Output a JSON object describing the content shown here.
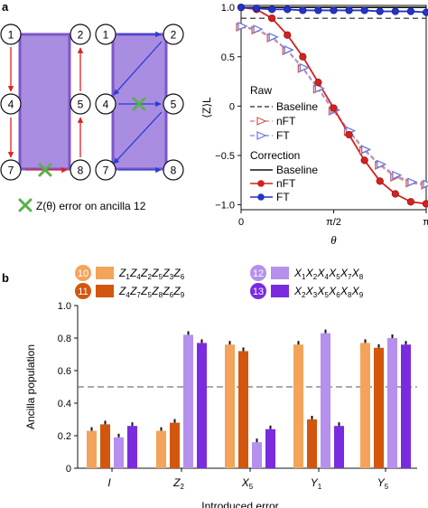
{
  "panel_labels": {
    "a": "a",
    "b": "b"
  },
  "colors": {
    "purple_fill": "#a98de0",
    "purple_edge": "#7d55cc",
    "arrow_red": "#e02020",
    "arrow_blue": "#2a3cd6",
    "red": "#d62020",
    "blue": "#2433c8",
    "orange_light": "#f4a35a",
    "orange_dark": "#d2560e",
    "violet_light": "#b590ec",
    "violet_dark": "#7a2be0",
    "green": "#5ab04a"
  },
  "lattice": {
    "left_nodes": [
      "1",
      "2",
      "4",
      "5",
      "7",
      "8"
    ],
    "right_nodes": [
      "1",
      "2",
      "4",
      "5",
      "7",
      "8"
    ],
    "cross_icon": "green-x-icon",
    "legend_text": "Z(θ) error on ancilla 12"
  },
  "chart_data": [
    {
      "type": "line",
      "ylabel": "⟨Z⟩L",
      "xlabel": "θ",
      "xlim": [
        0,
        3.1416
      ],
      "ylim": [
        -1.05,
        1.02
      ],
      "x_ticks": [
        {
          "value": 0,
          "label": "0"
        },
        {
          "value": 1.5708,
          "label": "π/2"
        },
        {
          "value": 3.1416,
          "label": "π"
        }
      ],
      "y_ticks": [
        {
          "value": 1.0,
          "label": "1.0"
        },
        {
          "value": 0.5,
          "label": "0.5"
        },
        {
          "value": 0,
          "label": "0"
        },
        {
          "value": -0.5,
          "label": "−0.5"
        },
        {
          "value": -1.0,
          "label": "−1.0"
        }
      ],
      "legend": {
        "raw_title": "Raw",
        "correction_title": "Correction",
        "entries": [
          {
            "group": "raw",
            "label": "Baseline"
          },
          {
            "group": "raw",
            "label": "nFT"
          },
          {
            "group": "raw",
            "label": "FT"
          },
          {
            "group": "correction",
            "label": "Baseline"
          },
          {
            "group": "correction",
            "label": "nFT"
          },
          {
            "group": "correction",
            "label": "FT"
          }
        ]
      },
      "x": [
        0,
        0.2618,
        0.5236,
        0.7854,
        1.0472,
        1.309,
        1.5708,
        1.8326,
        2.0944,
        2.3562,
        2.618,
        2.8798,
        3.1416
      ],
      "series": [
        {
          "name": "Baseline",
          "group": "raw",
          "constant": 0.89
        },
        {
          "name": "nFT",
          "group": "raw",
          "values": [
            0.8,
            0.77,
            0.69,
            0.56,
            0.38,
            0.17,
            -0.05,
            -0.26,
            -0.45,
            -0.6,
            -0.72,
            -0.78,
            -0.8
          ]
        },
        {
          "name": "FT",
          "group": "raw",
          "values": [
            0.81,
            0.78,
            0.7,
            0.57,
            0.39,
            0.18,
            -0.04,
            -0.25,
            -0.44,
            -0.59,
            -0.7,
            -0.77,
            -0.79
          ]
        },
        {
          "name": "Baseline",
          "group": "correction",
          "constant": 1.0
        },
        {
          "name": "nFT",
          "group": "correction",
          "values": [
            1.0,
            0.98,
            0.89,
            0.72,
            0.5,
            0.24,
            -0.02,
            -0.29,
            -0.55,
            -0.76,
            -0.89,
            -0.97,
            -0.99
          ]
        },
        {
          "name": "FT",
          "group": "correction",
          "values": [
            1.0,
            0.99,
            0.98,
            0.98,
            0.97,
            0.97,
            0.97,
            0.97,
            0.97,
            0.96,
            0.96,
            0.96,
            0.95
          ]
        }
      ]
    },
    {
      "type": "bar",
      "ylabel": "Ancilla population",
      "xlabel": "Introduced error",
      "ylim": [
        0,
        1.0
      ],
      "y_ticks": [
        {
          "value": 0,
          "label": "0"
        },
        {
          "value": 0.2,
          "label": "0.2"
        },
        {
          "value": 0.4,
          "label": "0.4"
        },
        {
          "value": 0.6,
          "label": "0.6"
        },
        {
          "value": 0.8,
          "label": "0.8"
        },
        {
          "value": 1.0,
          "label": "1.0"
        }
      ],
      "categories": [
        "I",
        "Z2",
        "X5",
        "Y1",
        "Y5"
      ],
      "reference_line": 0.5,
      "series": [
        {
          "name": "Z1Z4Z2Z5Z3Z6",
          "badge": "10",
          "values": [
            0.23,
            0.23,
            0.76,
            0.76,
            0.77
          ]
        },
        {
          "name": "Z4Z7Z5Z8Z6Z9",
          "badge": "11",
          "values": [
            0.27,
            0.28,
            0.72,
            0.3,
            0.74
          ]
        },
        {
          "name": "X1X2X4X5X7X8",
          "badge": "12",
          "values": [
            0.19,
            0.82,
            0.16,
            0.83,
            0.8
          ]
        },
        {
          "name": "X2X3X5X6X8X9",
          "badge": "13",
          "values": [
            0.26,
            0.77,
            0.24,
            0.26,
            0.76
          ]
        }
      ]
    }
  ]
}
